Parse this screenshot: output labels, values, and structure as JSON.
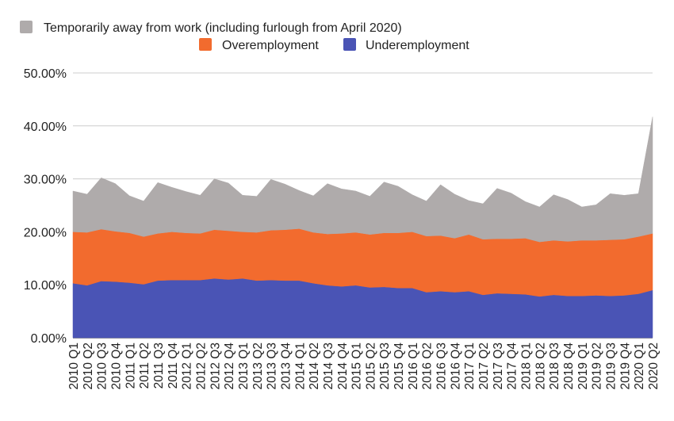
{
  "chart_data": {
    "type": "area",
    "stacked": true,
    "title": "",
    "xlabel": "",
    "ylabel": "",
    "ylim": [
      0,
      50
    ],
    "y_ticks": [
      "0.00%",
      "10.00%",
      "20.00%",
      "30.00%",
      "40.00%",
      "50.00%"
    ],
    "grid": true,
    "legend_position": "top",
    "categories": [
      "2010 Q1",
      "2010 Q2",
      "2010 Q3",
      "2010 Q4",
      "2011 Q1",
      "2011 Q2",
      "2011 Q3",
      "2011 Q4",
      "2012 Q1",
      "2012 Q2",
      "2012 Q3",
      "2012 Q4",
      "2013 Q1",
      "2013 Q2",
      "2013 Q3",
      "2013 Q4",
      "2014 Q1",
      "2014 Q2",
      "2014 Q3",
      "2014 Q4",
      "2015 Q1",
      "2015 Q2",
      "2015 Q3",
      "2015 Q4",
      "2016 Q1",
      "2016 Q2",
      "2016 Q3",
      "2016 Q4",
      "2017 Q1",
      "2017 Q2",
      "2017 Q3",
      "2017 Q4",
      "2018 Q1",
      "2018 Q2",
      "2018 Q3",
      "2018 Q4",
      "2019 Q1",
      "2019 Q2",
      "2019 Q3",
      "2019 Q4",
      "2020 Q1",
      "2020 Q2"
    ],
    "series": [
      {
        "name": "Underemployment",
        "color": "#4A54B5",
        "values": [
          10.3,
          9.9,
          10.7,
          10.6,
          10.4,
          10.1,
          10.8,
          10.9,
          10.9,
          10.9,
          11.2,
          11.0,
          11.2,
          10.8,
          10.9,
          10.8,
          10.8,
          10.3,
          9.9,
          9.7,
          9.9,
          9.5,
          9.6,
          9.4,
          9.4,
          8.6,
          8.8,
          8.6,
          8.8,
          8.1,
          8.4,
          8.3,
          8.2,
          7.8,
          8.1,
          7.9,
          7.9,
          8.0,
          7.9,
          8.0,
          8.3,
          9.0
        ]
      },
      {
        "name": "Overemployment",
        "color": "#F26B2E",
        "values": [
          9.7,
          10.0,
          9.8,
          9.5,
          9.4,
          9.0,
          8.9,
          9.1,
          8.9,
          8.8,
          9.2,
          9.2,
          8.8,
          9.1,
          9.4,
          9.6,
          9.8,
          9.6,
          9.7,
          10.0,
          10.0,
          10.0,
          10.2,
          10.4,
          10.6,
          10.6,
          10.5,
          10.2,
          10.7,
          10.5,
          10.3,
          10.4,
          10.6,
          10.3,
          10.3,
          10.3,
          10.5,
          10.4,
          10.6,
          10.6,
          10.8,
          10.7
        ]
      },
      {
        "name": "Temporarily away from work (including furlough from April 2020)",
        "color": "#AFABAB",
        "values": [
          7.7,
          7.2,
          9.7,
          9.0,
          7.0,
          6.7,
          9.6,
          8.4,
          7.8,
          7.2,
          9.6,
          9.0,
          6.9,
          6.8,
          9.6,
          8.6,
          7.2,
          6.9,
          9.5,
          8.4,
          7.8,
          7.2,
          9.6,
          8.8,
          7.0,
          6.6,
          9.6,
          8.3,
          6.4,
          6.7,
          9.5,
          8.6,
          6.9,
          6.6,
          8.6,
          7.9,
          6.3,
          6.7,
          8.7,
          8.3,
          8.1,
          22.0
        ]
      }
    ]
  }
}
